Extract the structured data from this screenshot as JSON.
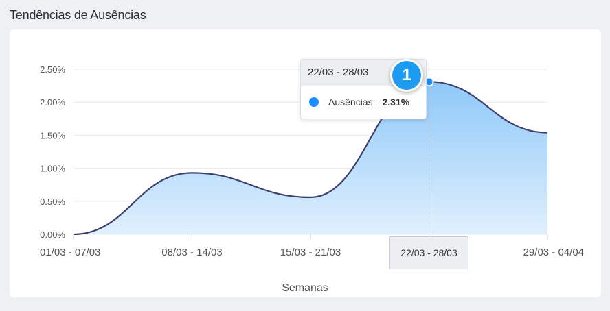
{
  "page_title": "Tendências de Ausências",
  "tooltip": {
    "header": "22/03 - 28/03",
    "series_label": "Ausências:",
    "value": "2.31%",
    "badge": "1"
  },
  "x_hover_label": "22/03 - 28/03",
  "chart_data": {
    "type": "area",
    "title": "Tendências de Ausências",
    "xlabel": "Semanas",
    "ylabel": "",
    "categories": [
      "01/03 - 07/03",
      "08/03 - 14/03",
      "15/03 - 21/03",
      "22/03 - 28/03",
      "29/03 - 04/04"
    ],
    "y_ticks": [
      "0.00%",
      "0.50%",
      "1.00%",
      "1.50%",
      "2.00%",
      "2.50%"
    ],
    "ylim": [
      0,
      2.5
    ],
    "series": [
      {
        "name": "Ausências",
        "values": [
          0.0,
          0.93,
          0.56,
          2.31,
          1.54
        ]
      }
    ],
    "grid": true,
    "colors": {
      "line": "#3d3f6e",
      "fill_top": "#8ec8f8",
      "fill_bottom": "#e0f0fd",
      "point": "#1a8cff"
    }
  }
}
